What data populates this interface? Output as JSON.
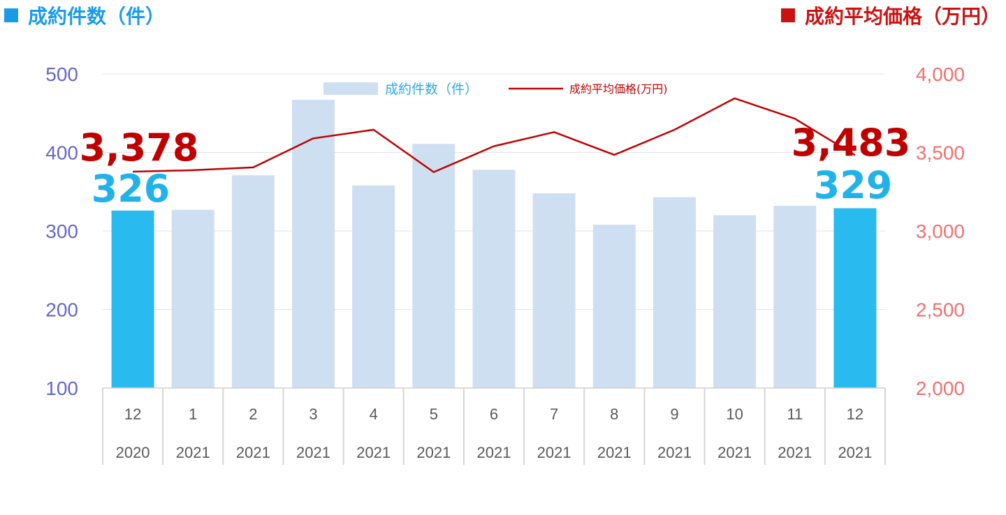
{
  "header": {
    "left_title": "成約件数（件）",
    "right_title": "成約平均価格（万円）",
    "left_color": "#1a9be8",
    "right_color": "#cc1111"
  },
  "legend": {
    "bar_label": "成約件数（件）",
    "line_label": "成約平均価格(万円)"
  },
  "chart_data": {
    "type": "bar",
    "categories": [
      "12",
      "1",
      "2",
      "3",
      "4",
      "5",
      "6",
      "7",
      "8",
      "9",
      "10",
      "11",
      "12"
    ],
    "years": [
      "2020",
      "2021",
      "2021",
      "2021",
      "2021",
      "2021",
      "2021",
      "2021",
      "2021",
      "2021",
      "2021",
      "2021",
      "2021"
    ],
    "series": [
      {
        "name": "成約件数（件）",
        "type": "bar",
        "axis": "left",
        "values": [
          326,
          327,
          371,
          467,
          358,
          411,
          378,
          348,
          308,
          343,
          320,
          332,
          329
        ],
        "color": "#cfdff2",
        "highlight_color": "#29bbef",
        "highlight_indices": [
          0,
          12
        ]
      },
      {
        "name": "成約平均価格(万円)",
        "type": "line",
        "axis": "right",
        "values": [
          3378,
          3387,
          3405,
          3590,
          3645,
          3375,
          3540,
          3630,
          3485,
          3645,
          3845,
          3715,
          3483
        ],
        "color": "#c00000"
      }
    ],
    "left_axis": {
      "ylim": [
        100,
        500
      ],
      "ticks": [
        "100",
        "200",
        "300",
        "400",
        "500"
      ],
      "color": "#6666cc"
    },
    "right_axis": {
      "ylim": [
        2000,
        4000
      ],
      "ticks": [
        "2,000",
        "2,500",
        "3,000",
        "3,500",
        "4,000"
      ],
      "color": "#f07070"
    },
    "annotations": {
      "first_bar": "326",
      "last_bar": "329",
      "first_price": "3,378",
      "last_price": "3,483",
      "bar_color": "#22b2ea",
      "price_color": "#c00000"
    },
    "grid": true,
    "legend_position": "top-center"
  }
}
